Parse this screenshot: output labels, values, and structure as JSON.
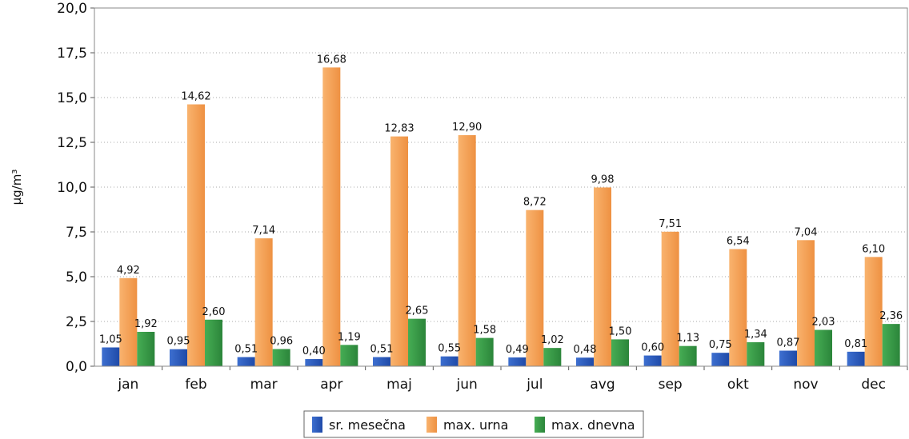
{
  "chart_data": {
    "type": "bar",
    "title": "",
    "xlabel": "",
    "ylabel": "µg/m³",
    "ylim": [
      0,
      20
    ],
    "yticks": [
      "0,0",
      "2,5",
      "5,0",
      "7,5",
      "10,0",
      "12,5",
      "15,0",
      "17,5",
      "20,0"
    ],
    "ytick_values": [
      0,
      2.5,
      5,
      7.5,
      10,
      12.5,
      15,
      17.5,
      20
    ],
    "grid": true,
    "legend_position": "bottom",
    "categories": [
      "jan",
      "feb",
      "mar",
      "apr",
      "maj",
      "jun",
      "jul",
      "avg",
      "sep",
      "okt",
      "nov",
      "dec"
    ],
    "series": [
      {
        "name": "sr. mesečna",
        "color": "#2e5fbf",
        "values": [
          1.05,
          0.95,
          0.51,
          0.4,
          0.51,
          0.55,
          0.49,
          0.48,
          0.6,
          0.75,
          0.87,
          0.81
        ],
        "labels": [
          "1,05",
          "0,95",
          "0,51",
          "0,40",
          "0,51",
          "0,55",
          "0,49",
          "0,48",
          "0,60",
          "0,75",
          "0,87",
          "0,81"
        ]
      },
      {
        "name": "max. urna",
        "color": "#f7a35c",
        "values": [
          4.92,
          14.62,
          7.14,
          16.68,
          12.83,
          12.9,
          8.72,
          9.98,
          7.51,
          6.54,
          7.04,
          6.1
        ],
        "labels": [
          "4,92",
          "14,62",
          "7,14",
          "16,68",
          "12,83",
          "12,90",
          "8,72",
          "9,98",
          "7,51",
          "6,54",
          "7,04",
          "6,10"
        ]
      },
      {
        "name": "max. dnevna",
        "color": "#3a9a47",
        "values": [
          1.92,
          2.6,
          0.96,
          1.19,
          2.65,
          1.58,
          1.02,
          1.5,
          1.13,
          1.34,
          2.03,
          2.36
        ],
        "labels": [
          "1,92",
          "2,60",
          "0,96",
          "1,19",
          "2,65",
          "1,58",
          "1,02",
          "1,50",
          "1,13",
          "1,34",
          "2,03",
          "2,36"
        ]
      }
    ]
  }
}
